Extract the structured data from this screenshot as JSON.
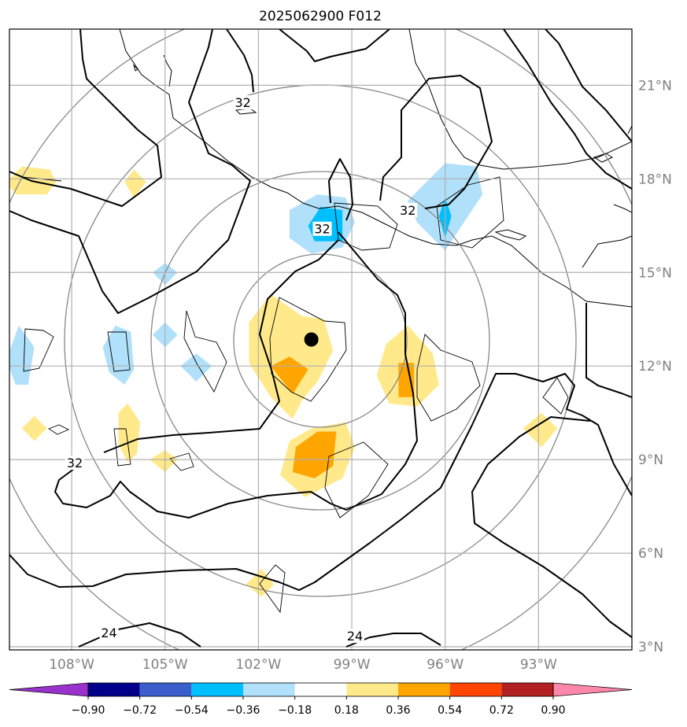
{
  "chart_data": {
    "type": "heatmap",
    "title": "2025062900 F012",
    "x_axis": {
      "ticks": [
        "108°W",
        "105°W",
        "102°W",
        "99°W",
        "96°W",
        "93°W"
      ],
      "values": [
        -108,
        -105,
        -102,
        -99,
        -96,
        -93
      ],
      "range": [
        -110,
        -90
      ]
    },
    "y_axis": {
      "ticks": [
        "21°N",
        "18°N",
        "15°N",
        "12°N",
        "9°N",
        "6°N",
        "3°N"
      ],
      "values": [
        21,
        18,
        15,
        12,
        9,
        6,
        3
      ],
      "range": [
        2.9,
        22.8
      ],
      "position": "right"
    },
    "grid": true,
    "center_marker": {
      "lon": -100.3,
      "lat": 12.85
    },
    "range_rings_center": {
      "lon": -100.3,
      "lat": 12.85
    },
    "colorbar": {
      "orientation": "horizontal",
      "position": "bottom",
      "extend": "both",
      "boundaries": [
        "−0.90",
        "−0.72",
        "−0.54",
        "−0.36",
        "−0.18",
        "0.18",
        "0.36",
        "0.54",
        "0.72",
        "0.90"
      ],
      "colors": [
        "#9932cc",
        "#00008b",
        "#3a5fcd",
        "#00bfff",
        "#b0e0fa",
        "#ffffff",
        "#ffe98a",
        "#ffa500",
        "#ff4500",
        "#b22222",
        "#ff88aa"
      ]
    },
    "contour_labels": [
      {
        "text": "32",
        "lon": -102.5,
        "lat": 20.45
      },
      {
        "text": "32",
        "lon": -99.95,
        "lat": 16.4
      },
      {
        "text": "32",
        "lon": -97.2,
        "lat": 17.0
      },
      {
        "text": "32",
        "lon": -107.9,
        "lat": 8.9
      },
      {
        "text": "24",
        "lon": -106.8,
        "lat": 3.45
      },
      {
        "text": "24",
        "lon": -98.9,
        "lat": 3.35
      }
    ],
    "shaded_areas": [
      {
        "level": 0.18,
        "color": "#ffe98a",
        "pts": [
          [
            -101.6,
            14.3
          ],
          [
            -100.6,
            13.6
          ],
          [
            -99.9,
            13.5
          ],
          [
            -99.6,
            12.5
          ],
          [
            -100.1,
            11.5
          ],
          [
            -100.6,
            10.9
          ],
          [
            -100.9,
            10.3
          ],
          [
            -101.6,
            11.0
          ],
          [
            -102.3,
            12.1
          ],
          [
            -102.3,
            13.4
          ]
        ]
      },
      {
        "level": 0.36,
        "color": "#ffa500",
        "pts": [
          [
            -101.0,
            12.3
          ],
          [
            -100.4,
            11.9
          ],
          [
            -100.9,
            11.1
          ],
          [
            -101.6,
            12.0
          ]
        ]
      },
      {
        "level": 0.18,
        "color": "#ffe98a",
        "pts": [
          [
            -97.2,
            13.3
          ],
          [
            -96.4,
            12.4
          ],
          [
            -96.2,
            11.4
          ],
          [
            -96.9,
            10.7
          ],
          [
            -97.8,
            10.8
          ],
          [
            -98.2,
            11.7
          ],
          [
            -97.9,
            12.7
          ]
        ]
      },
      {
        "level": 0.36,
        "color": "#ffa500",
        "pts": [
          [
            -97.5,
            12.1
          ],
          [
            -97.0,
            12.1
          ],
          [
            -97.0,
            11.0
          ],
          [
            -97.5,
            11.0
          ]
        ]
      },
      {
        "level": 0.18,
        "color": "#ffe98a",
        "pts": [
          [
            -100.3,
            10.0
          ],
          [
            -99.2,
            10.2
          ],
          [
            -98.9,
            9.4
          ],
          [
            -99.3,
            8.4
          ],
          [
            -100.5,
            7.8
          ],
          [
            -101.3,
            8.5
          ],
          [
            -101.0,
            9.6
          ]
        ]
      },
      {
        "level": 0.36,
        "color": "#ffa500",
        "pts": [
          [
            -100.1,
            9.9
          ],
          [
            -99.5,
            9.9
          ],
          [
            -99.6,
            8.8
          ],
          [
            -100.2,
            8.4
          ],
          [
            -100.9,
            8.6
          ],
          [
            -100.8,
            9.4
          ]
        ]
      },
      {
        "level": 0.18,
        "color": "#ffe98a",
        "pts": [
          [
            -109.6,
            18.4
          ],
          [
            -108.7,
            18.3
          ],
          [
            -108.5,
            17.9
          ],
          [
            -108.8,
            17.5
          ],
          [
            -109.8,
            17.5
          ],
          [
            -110.1,
            17.9
          ]
        ]
      },
      {
        "level": 0.18,
        "color": "#ffe98a",
        "pts": [
          [
            -106.0,
            18.3
          ],
          [
            -105.6,
            17.9
          ],
          [
            -106.0,
            17.4
          ],
          [
            -106.3,
            17.9
          ]
        ]
      },
      {
        "level": 0.18,
        "color": "#ffe98a",
        "pts": [
          [
            -109.2,
            10.4
          ],
          [
            -108.8,
            10.0
          ],
          [
            -109.2,
            9.6
          ],
          [
            -109.6,
            10.0
          ]
        ]
      },
      {
        "level": 0.18,
        "color": "#ffe98a",
        "pts": [
          [
            -106.2,
            10.8
          ],
          [
            -105.8,
            10.2
          ],
          [
            -105.9,
            9.2
          ],
          [
            -106.2,
            8.9
          ],
          [
            -106.5,
            9.5
          ],
          [
            -106.5,
            10.5
          ]
        ]
      },
      {
        "level": 0.18,
        "color": "#ffe98a",
        "pts": [
          [
            -105.0,
            9.3
          ],
          [
            -104.6,
            9.0
          ],
          [
            -105.0,
            8.6
          ],
          [
            -105.5,
            9.0
          ]
        ]
      },
      {
        "level": 0.18,
        "color": "#ffe98a",
        "pts": [
          [
            -92.9,
            10.5
          ],
          [
            -92.4,
            10.0
          ],
          [
            -92.9,
            9.4
          ],
          [
            -93.5,
            10.0
          ]
        ]
      },
      {
        "level": 0.18,
        "color": "#ffe98a",
        "pts": [
          [
            -101.9,
            5.5
          ],
          [
            -101.5,
            5.0
          ],
          [
            -101.9,
            4.6
          ],
          [
            -102.4,
            5.0
          ]
        ]
      },
      {
        "level": -0.18,
        "color": "#b0e0fa",
        "pts": [
          [
            -100.1,
            17.5
          ],
          [
            -99.2,
            17.4
          ],
          [
            -98.9,
            16.6
          ],
          [
            -99.3,
            15.8
          ],
          [
            -100.3,
            15.6
          ],
          [
            -101.0,
            16.1
          ],
          [
            -101.0,
            17.0
          ]
        ]
      },
      {
        "level": -0.36,
        "color": "#00bfff",
        "pts": [
          [
            -100.0,
            17.1
          ],
          [
            -99.3,
            17.0
          ],
          [
            -99.3,
            16.0
          ],
          [
            -100.2,
            16.0
          ],
          [
            -100.4,
            16.5
          ]
        ]
      },
      {
        "level": -0.18,
        "color": "#b0e0fa",
        "pts": [
          [
            -96.0,
            18.5
          ],
          [
            -95.0,
            18.4
          ],
          [
            -94.8,
            17.5
          ],
          [
            -95.4,
            16.6
          ],
          [
            -96.0,
            15.7
          ],
          [
            -96.9,
            16.6
          ],
          [
            -97.2,
            17.3
          ]
        ]
      },
      {
        "level": -0.36,
        "color": "#00bfff",
        "pts": [
          [
            -96.0,
            17.4
          ],
          [
            -95.8,
            16.8
          ],
          [
            -96.0,
            16.1
          ],
          [
            -96.2,
            16.8
          ]
        ]
      },
      {
        "level": -0.18,
        "color": "#b0e0fa",
        "pts": [
          [
            -109.7,
            13.3
          ],
          [
            -109.2,
            12.6
          ],
          [
            -109.4,
            11.4
          ],
          [
            -109.8,
            11.4
          ],
          [
            -110.1,
            12.2
          ]
        ]
      },
      {
        "level": -0.18,
        "color": "#b0e0fa",
        "pts": [
          [
            -106.6,
            13.3
          ],
          [
            -106.1,
            13.1
          ],
          [
            -106.0,
            11.9
          ],
          [
            -106.3,
            11.4
          ],
          [
            -106.8,
            11.8
          ],
          [
            -107.0,
            12.6
          ]
        ]
      },
      {
        "level": -0.18,
        "color": "#b0e0fa",
        "pts": [
          [
            -105.0,
            15.3
          ],
          [
            -104.6,
            15.0
          ],
          [
            -105.0,
            14.6
          ],
          [
            -105.4,
            15.0
          ]
        ]
      },
      {
        "level": -0.18,
        "color": "#b0e0fa",
        "pts": [
          [
            -105.0,
            13.4
          ],
          [
            -104.6,
            13.0
          ],
          [
            -105.0,
            12.6
          ],
          [
            -105.4,
            13.0
          ]
        ]
      },
      {
        "level": -0.18,
        "color": "#b0e0fa",
        "pts": [
          [
            -104.0,
            12.4
          ],
          [
            -103.5,
            12.0
          ],
          [
            -104.0,
            11.5
          ],
          [
            -104.5,
            12.0
          ]
        ]
      }
    ]
  }
}
